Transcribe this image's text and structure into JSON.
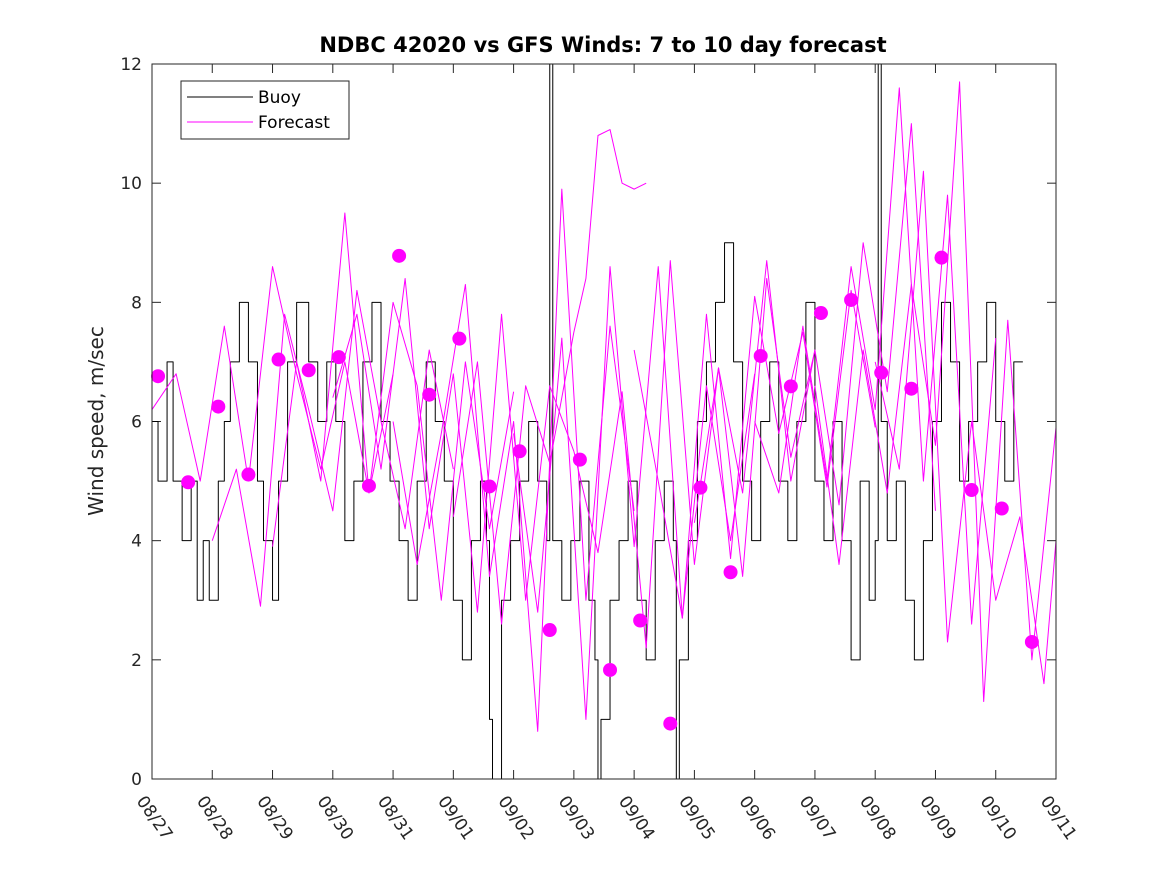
{
  "chart_data": {
    "type": "line",
    "title": "NDBC 42020 vs GFS Winds: 7 to 10 day forecast",
    "xlabel": "",
    "ylabel": "Wind speed, m/sec",
    "xlim": [
      0,
      15
    ],
    "ylim": [
      0,
      12
    ],
    "yticks": [
      0,
      2,
      4,
      6,
      8,
      10,
      12
    ],
    "xtick_labels": [
      "08/27",
      "08/28",
      "08/29",
      "08/30",
      "08/31",
      "09/01",
      "09/02",
      "09/03",
      "09/04",
      "09/05",
      "09/06",
      "09/07",
      "09/08",
      "09/09",
      "09/10",
      "09/11"
    ],
    "legend": {
      "position": "top-left",
      "entries": [
        {
          "label": "Buoy",
          "color": "#000000"
        },
        {
          "label": "Forecast",
          "color": "#ff00ff"
        }
      ]
    },
    "colors": {
      "buoy": "#000000",
      "forecast": "#ff00ff",
      "axes": "#262626"
    },
    "series": [
      {
        "name": "Buoy",
        "step": true,
        "x": [
          0,
          0.1,
          0.25,
          0.35,
          0.5,
          0.65,
          0.75,
          0.85,
          0.95,
          1.1,
          1.2,
          1.3,
          1.45,
          1.6,
          1.75,
          1.85,
          2.0,
          2.1,
          2.25,
          2.4,
          2.6,
          2.75,
          2.9,
          3.05,
          3.2,
          3.35,
          3.5,
          3.65,
          3.8,
          3.95,
          4.1,
          4.25,
          4.4,
          4.55,
          4.7,
          4.85,
          5.0,
          5.15,
          5.3,
          5.45,
          5.55,
          5.6,
          5.65,
          5.8,
          5.95,
          6.1,
          6.25,
          6.4,
          6.55,
          6.6,
          6.65,
          6.8,
          6.95,
          7.1,
          7.25,
          7.35,
          7.4,
          7.45,
          7.6,
          7.75,
          7.9,
          8.05,
          8.2,
          8.35,
          8.5,
          8.65,
          8.7,
          8.75,
          8.9,
          9.05,
          9.2,
          9.35,
          9.5,
          9.65,
          9.8,
          9.95,
          10.1,
          10.25,
          10.4,
          10.55,
          10.7,
          10.85,
          11.0,
          11.15,
          11.3,
          11.45,
          11.6,
          11.75,
          11.9,
          12.0,
          12.05,
          12.1,
          12.2,
          12.35,
          12.5,
          12.65,
          12.8,
          12.95,
          13.1,
          13.25,
          13.4,
          13.55,
          13.7,
          13.85,
          14.0,
          14.15,
          14.3
        ],
        "values": [
          6,
          5,
          7,
          5,
          4,
          5,
          3,
          4,
          3,
          5,
          6,
          7,
          8,
          7,
          5,
          4,
          3,
          5,
          7,
          8,
          7,
          6,
          7,
          6,
          4,
          5,
          7,
          8,
          6,
          5,
          4,
          3,
          5,
          7,
          6,
          5,
          3,
          2,
          4,
          5,
          4,
          1,
          0,
          3,
          4,
          5,
          6,
          5,
          4,
          12,
          4,
          3,
          4,
          5,
          3,
          2,
          0,
          1,
          3,
          4,
          5,
          3,
          2,
          4,
          5,
          4,
          0,
          2,
          4,
          6,
          7,
          8,
          9,
          7,
          5,
          4,
          6,
          7,
          5,
          4,
          6,
          8,
          5,
          4,
          6,
          4,
          2,
          5,
          3,
          4,
          12,
          6,
          4,
          5,
          3,
          2,
          4,
          6,
          8,
          7,
          5,
          6,
          7,
          8,
          6,
          5,
          7
        ]
      },
      {
        "name": "Forecast 1",
        "x": [
          0,
          0.4,
          0.8,
          1.2,
          1.6,
          2.0,
          2.4,
          2.8,
          3.2,
          3.6,
          4.0
        ],
        "values": [
          6.2,
          6.8,
          5.0,
          7.6,
          5.0,
          8.6,
          6.8,
          5.2,
          7.0,
          4.8,
          6.8
        ]
      },
      {
        "name": "Forecast 2",
        "x": [
          1.0,
          1.4,
          1.8,
          2.2,
          2.6,
          3.0,
          3.4,
          3.8,
          4.2,
          4.6,
          5.0
        ],
        "values": [
          4.0,
          5.2,
          2.9,
          7.8,
          6.2,
          4.5,
          8.2,
          6.0,
          4.2,
          7.2,
          5.2
        ]
      },
      {
        "name": "Forecast 3",
        "x": [
          2.0,
          2.4,
          2.8,
          3.2,
          3.6,
          4.0,
          4.4,
          4.8,
          5.2,
          5.6,
          6.0
        ],
        "values": [
          3.9,
          7.0,
          5.0,
          9.5,
          4.8,
          8.0,
          6.6,
          3.0,
          7.0,
          4.2,
          6.5
        ]
      },
      {
        "name": "Forecast 4",
        "x": [
          3.0,
          3.4,
          3.8,
          4.2,
          4.6,
          5.0,
          5.4,
          5.8,
          6.2,
          6.6,
          7.0
        ],
        "values": [
          6.4,
          7.8,
          5.2,
          8.4,
          4.2,
          6.8,
          2.8,
          7.8,
          3.0,
          6.6,
          5.5
        ]
      },
      {
        "name": "Forecast 5",
        "x": [
          4.0,
          4.4,
          4.8,
          5.2,
          5.6,
          6.0,
          6.4,
          6.8,
          7.2,
          7.6,
          8.0
        ],
        "values": [
          6.0,
          3.6,
          5.8,
          8.3,
          3.4,
          6.0,
          0.8,
          9.9,
          3.0,
          7.6,
          4.5
        ]
      },
      {
        "name": "Forecast 6",
        "x": [
          5.0,
          5.4,
          5.8,
          6.2,
          6.6,
          7.0,
          7.2,
          7.4,
          7.6,
          7.8,
          8.0,
          8.2
        ],
        "values": [
          4.4,
          7.0,
          2.6,
          6.6,
          5.3,
          7.5,
          8.4,
          10.8,
          10.9,
          10.0,
          9.9,
          10.0
        ]
      },
      {
        "name": "Forecast 7",
        "x": [
          6.0,
          6.4,
          6.8,
          7.2,
          7.6,
          8.0,
          8.4,
          8.8,
          9.2,
          9.6,
          10.0
        ],
        "values": [
          5.8,
          2.8,
          7.4,
          1.0,
          8.6,
          3.9,
          8.6,
          2.7,
          6.6,
          4.0,
          6.8
        ]
      },
      {
        "name": "Forecast 8",
        "x": [
          7.0,
          7.4,
          7.8,
          8.2,
          8.6,
          9.0,
          9.4,
          9.8,
          10.2,
          10.6,
          11.0
        ],
        "values": [
          5.5,
          3.8,
          6.5,
          2.2,
          8.7,
          3.6,
          6.9,
          4.8,
          8.7,
          5.0,
          7.2
        ]
      },
      {
        "name": "Forecast 9",
        "x": [
          8.0,
          8.4,
          8.8,
          9.2,
          9.6,
          10.0,
          10.4,
          10.8,
          11.2,
          11.6,
          12.0
        ],
        "values": [
          7.2,
          5.0,
          2.7,
          7.8,
          3.7,
          8.1,
          5.8,
          7.5,
          4.9,
          8.2,
          5.9
        ]
      },
      {
        "name": "Forecast 10",
        "x": [
          9.0,
          9.4,
          9.8,
          10.2,
          10.6,
          11.0,
          11.4,
          11.8,
          12.2,
          12.6,
          13.0
        ],
        "values": [
          4.3,
          6.9,
          3.4,
          8.4,
          5.4,
          7.2,
          4.6,
          9.0,
          6.5,
          11.0,
          4.5
        ]
      },
      {
        "name": "Forecast 11",
        "x": [
          10.0,
          10.4,
          10.8,
          11.2,
          11.6,
          12.0,
          12.4,
          12.8,
          13.2,
          13.6,
          14.0
        ],
        "values": [
          6.0,
          4.8,
          7.6,
          5.0,
          8.6,
          6.2,
          11.6,
          5.0,
          9.8,
          2.6,
          7.4
        ]
      },
      {
        "name": "Forecast 12",
        "x": [
          11.0,
          11.4,
          11.8,
          12.2,
          12.6,
          13.0,
          13.4,
          13.8,
          14.2,
          14.6,
          15.0
        ],
        "values": [
          6.6,
          3.6,
          7.2,
          4.8,
          8.3,
          5.6,
          11.7,
          1.3,
          7.7,
          2.0,
          5.9
        ]
      },
      {
        "name": "Forecast 13",
        "x": [
          12.0,
          12.4,
          12.8,
          13.2,
          13.6,
          14.0,
          14.4,
          14.8,
          15.0
        ],
        "values": [
          7.0,
          5.2,
          10.2,
          2.3,
          6.0,
          3.0,
          4.4,
          1.6,
          4.0
        ]
      },
      {
        "name": "Forecast markers",
        "markers_only": true,
        "x": [
          0.1,
          0.6,
          1.1,
          1.6,
          2.1,
          2.6,
          3.1,
          3.6,
          4.1,
          4.6,
          5.1,
          5.6,
          6.1,
          6.6,
          7.1,
          7.6,
          8.1,
          8.6,
          9.1,
          9.6,
          10.1,
          10.6,
          11.1,
          11.6,
          12.1,
          12.6,
          13.1,
          13.6,
          14.1,
          14.6
        ],
        "values": [
          6.76,
          4.98,
          6.25,
          5.11,
          7.04,
          6.86,
          7.08,
          4.92,
          8.78,
          6.45,
          7.39,
          4.91,
          5.5,
          2.5,
          5.36,
          1.83,
          2.66,
          0.93,
          4.89,
          3.47,
          7.1,
          6.59,
          7.82,
          8.04,
          6.82,
          6.55,
          8.75,
          4.85,
          4.54,
          2.3
        ]
      }
    ]
  }
}
